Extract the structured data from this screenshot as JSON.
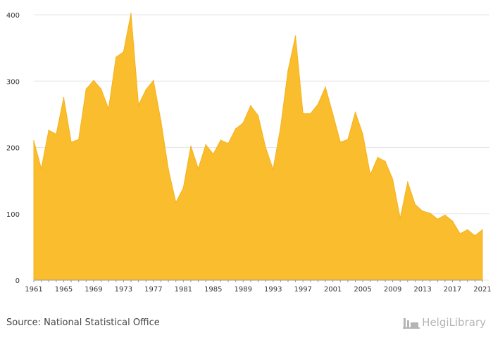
{
  "chart_data": {
    "type": "area",
    "title": "",
    "xlabel": "",
    "ylabel": "",
    "ylim": [
      0,
      400
    ],
    "yticks": [
      0,
      100,
      200,
      300,
      400
    ],
    "xticks": [
      1961,
      1965,
      1969,
      1973,
      1977,
      1981,
      1985,
      1989,
      1993,
      1997,
      2001,
      2005,
      2009,
      2013,
      2017,
      2021
    ],
    "grid": true,
    "color": "#f9bd2e",
    "x": [
      1961,
      1962,
      1963,
      1964,
      1965,
      1966,
      1967,
      1968,
      1969,
      1970,
      1971,
      1972,
      1973,
      1974,
      1975,
      1976,
      1977,
      1978,
      1979,
      1980,
      1981,
      1982,
      1983,
      1984,
      1985,
      1986,
      1987,
      1988,
      1989,
      1990,
      1991,
      1992,
      1993,
      1994,
      1995,
      1996,
      1997,
      1998,
      1999,
      2000,
      2001,
      2002,
      2003,
      2004,
      2005,
      2006,
      2007,
      2008,
      2009,
      2010,
      2011,
      2012,
      2013,
      2014,
      2015,
      2016,
      2017,
      2018,
      2019,
      2020,
      2021
    ],
    "values": [
      210,
      168,
      226,
      220,
      275,
      208,
      212,
      288,
      301,
      288,
      258,
      336,
      344,
      402,
      264,
      287,
      301,
      240,
      167,
      117,
      139,
      202,
      168,
      204,
      190,
      211,
      206,
      228,
      237,
      263,
      248,
      200,
      167,
      230,
      316,
      368,
      251,
      251,
      265,
      291,
      250,
      208,
      212,
      253,
      220,
      159,
      185,
      179,
      152,
      93,
      148,
      114,
      104,
      101,
      92,
      98,
      89,
      70,
      76,
      67,
      76
    ]
  },
  "source": "Source: National Statistical Office",
  "logo": {
    "name": "HelgiLibrary",
    "icon": "factory-icon"
  }
}
